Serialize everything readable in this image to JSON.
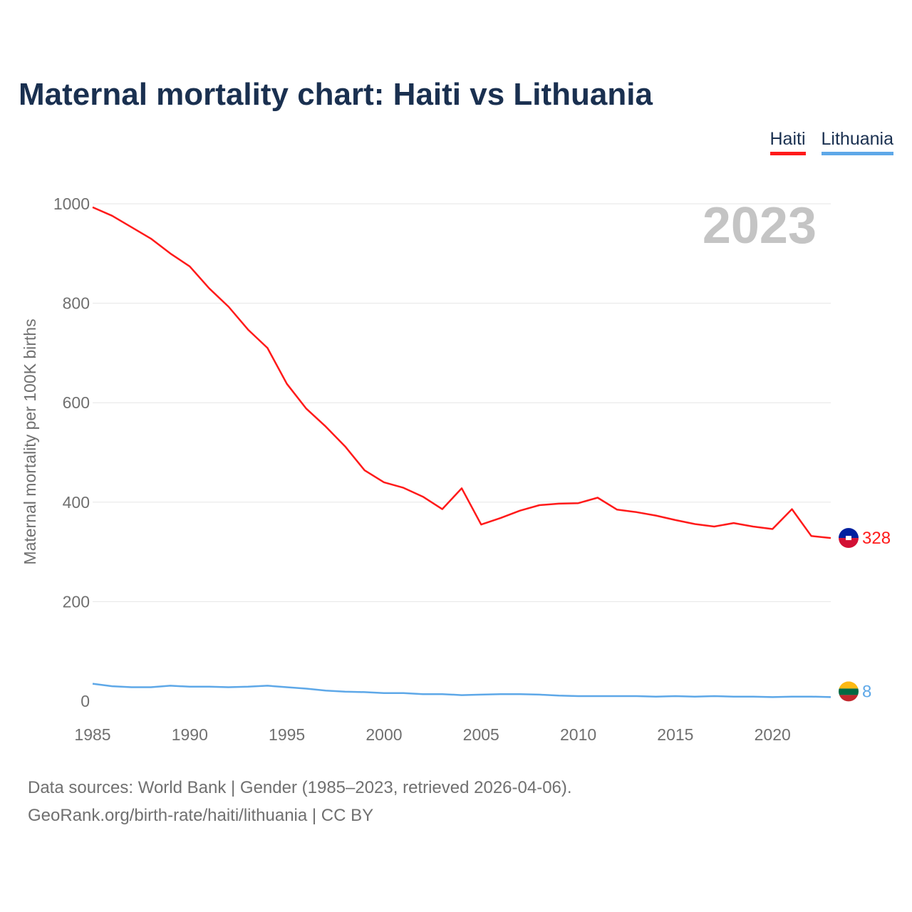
{
  "title": "Maternal mortality chart: Haiti vs Lithuania",
  "legend": [
    {
      "label": "Haiti",
      "color": "#ff1a1a"
    },
    {
      "label": "Lithuania",
      "color": "#5ea8e8"
    }
  ],
  "footer": {
    "line1": "Data sources: World Bank | Gender (1985–2023, retrieved 2026-04-06).",
    "line2": "GeoRank.org/birth-rate/haiti/lithuania | CC BY"
  },
  "chart_data": {
    "type": "line",
    "title": "Maternal mortality chart: Haiti vs Lithuania",
    "xlabel": "",
    "ylabel": "Maternal mortality per 100K births",
    "year_label": "2023",
    "xlim": [
      1985,
      2023
    ],
    "ylim": [
      0,
      1000
    ],
    "x_ticks": [
      1985,
      1990,
      1995,
      2000,
      2005,
      2010,
      2015,
      2020
    ],
    "y_ticks": [
      0,
      200,
      400,
      600,
      800,
      1000
    ],
    "grid": true,
    "legend_position": "top-right",
    "x": [
      1985,
      1986,
      1987,
      1988,
      1989,
      1990,
      1991,
      1992,
      1993,
      1994,
      1995,
      1996,
      1997,
      1998,
      1999,
      2000,
      2001,
      2002,
      2003,
      2004,
      2005,
      2006,
      2007,
      2008,
      2009,
      2010,
      2011,
      2012,
      2013,
      2014,
      2015,
      2016,
      2017,
      2018,
      2019,
      2020,
      2021,
      2022,
      2023
    ],
    "series": [
      {
        "name": "Haiti",
        "color": "#ff1a1a",
        "end_label": "328",
        "values": [
          993,
          976,
          953,
          930,
          900,
          874,
          830,
          793,
          747,
          710,
          638,
          588,
          552,
          512,
          464,
          440,
          429,
          411,
          386,
          428,
          355,
          368,
          383,
          394,
          397,
          398,
          409,
          385,
          380,
          373,
          364,
          356,
          351,
          358,
          351,
          346,
          386,
          332,
          328
        ]
      },
      {
        "name": "Lithuania",
        "color": "#5ea8e8",
        "end_label": "8",
        "values": [
          35,
          30,
          28,
          28,
          31,
          29,
          29,
          28,
          29,
          31,
          28,
          25,
          21,
          19,
          18,
          16,
          16,
          14,
          14,
          12,
          13,
          14,
          14,
          13,
          11,
          10,
          10,
          10,
          10,
          9,
          10,
          9,
          10,
          9,
          9,
          8,
          9,
          9,
          8
        ]
      }
    ]
  }
}
